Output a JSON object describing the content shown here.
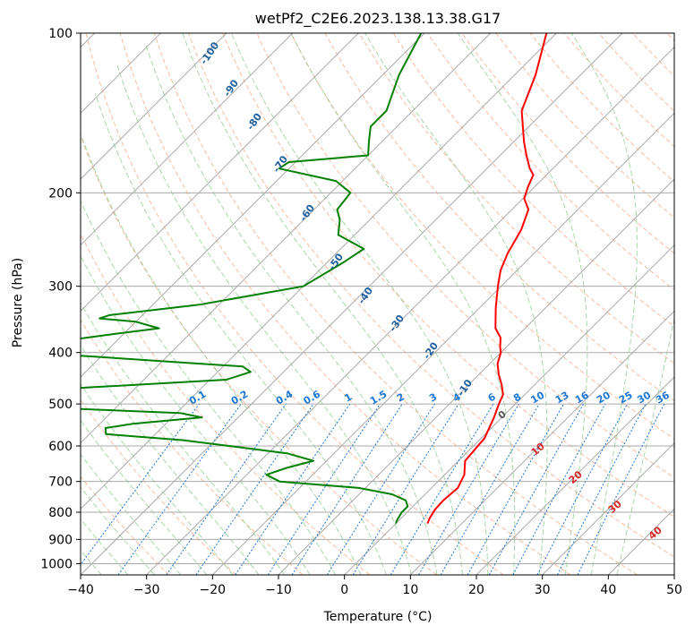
{
  "chart_data": {
    "type": "line",
    "title": "wetPf2_C2E6.2023.138.13.38.G17",
    "xlabel": "Temperature (°C)",
    "ylabel": "Pressure (hPa)",
    "xlim": [
      -40,
      50
    ],
    "ylim": [
      1050,
      100
    ],
    "y_scale": "log",
    "grid": true,
    "x_ticks": [
      "−40",
      "−30",
      "−20",
      "−10",
      "0",
      "10",
      "20",
      "30",
      "40",
      "50"
    ],
    "x_tick_values": [
      -40,
      -30,
      -20,
      -10,
      0,
      10,
      20,
      30,
      40,
      50
    ],
    "y_ticks": [
      "100",
      "200",
      "300",
      "400",
      "500",
      "600",
      "700",
      "800",
      "900",
      "1000"
    ],
    "y_tick_values": [
      100,
      200,
      300,
      400,
      500,
      600,
      700,
      800,
      900,
      1000
    ],
    "series": [
      {
        "color": "#ff0000",
        "p": [
          100,
          120,
          140,
          160,
          170,
          180,
          185,
          195,
          205,
          215,
          235,
          260,
          280,
          300,
          330,
          360,
          375,
          390,
          400,
          420,
          440,
          460,
          480,
          500,
          530,
          580,
          640,
          680,
          720,
          760,
          790,
          820,
          840
        ],
        "t": [
          -51.5,
          -46.8,
          -43.5,
          -38.5,
          -36.0,
          -33.5,
          -32.0,
          -31.0,
          -29.8,
          -27.5,
          -25.5,
          -24.0,
          -22.5,
          -20.5,
          -17.5,
          -14.5,
          -12.3,
          -11.0,
          -10.0,
          -8.8,
          -7.0,
          -5.0,
          -3.3,
          -2.5,
          -1.2,
          0.5,
          1.0,
          3.0,
          4.0,
          3.7,
          3.8,
          4.3,
          4.8
        ]
      },
      {
        "color": "#008000",
        "p": [
          100,
          120,
          140,
          150,
          160,
          170,
          175,
          180,
          190,
          200,
          215,
          225,
          240,
          255,
          270,
          300,
          325,
          340,
          345,
          350,
          360,
          370,
          380,
          405,
          425,
          435,
          450,
          470,
          510,
          520,
          530,
          545,
          555,
          570,
          585,
          600,
          620,
          640,
          660,
          680,
          700,
          720,
          740,
          760,
          780,
          800,
          830,
          840
        ],
        "t": [
          -70.5,
          -67.5,
          -64.0,
          -64.0,
          -62.0,
          -60.0,
          -71.0,
          -71.5,
          -61.0,
          -57.0,
          -56.5,
          -54.5,
          -52.5,
          -46.5,
          -47.5,
          -50.0,
          -63.0,
          -75.0,
          -76.0,
          -70.0,
          -65.5,
          -72.0,
          -78.0,
          -74.0,
          -47.0,
          -45.0,
          -47.5,
          -73.0,
          -67.0,
          -49.5,
          -45.5,
          -55.0,
          -58.5,
          -57.5,
          -45.0,
          -37.0,
          -27.0,
          -22.0,
          -25.0,
          -27.0,
          -24.0,
          -11.0,
          -5.0,
          -2.0,
          -0.8,
          -0.8,
          -0.3,
          0.0
        ]
      }
    ],
    "mixing_ratio_labels": [
      "0.1",
      "0.2",
      "0.4",
      "0.6",
      "1",
      "1.5",
      "2",
      "3",
      "4",
      "6",
      "8",
      "10",
      "13",
      "16",
      "20",
      "25",
      "30",
      "36"
    ],
    "mixing_ratio_values": [
      0.1,
      0.2,
      0.4,
      0.6,
      1,
      1.5,
      2,
      3,
      4,
      6,
      8,
      10,
      13,
      16,
      20,
      25,
      30,
      36
    ],
    "moist_adiabat_labels": [
      "-100",
      "-90",
      "-80",
      "-70",
      "-60",
      "-50",
      "-40",
      "-30",
      "-20",
      "-10"
    ],
    "moist_adiabat_values": [
      -100,
      -90,
      -80,
      -70,
      -60,
      -50,
      -40,
      -30,
      -20,
      -10
    ],
    "dry_adiabat_labels": [
      "0",
      "10",
      "20",
      "30",
      "40"
    ],
    "dry_adiabat_values": [
      0,
      10,
      20,
      30,
      40
    ],
    "colors": {
      "temperature": "#ff0000",
      "dewpoint": "#008000",
      "isotherm": "#aaaaaa",
      "isobar": "#aaaaaa",
      "dry_adiabat": "#f4a582",
      "moist_adiabat": "#8fc88f",
      "mixing_ratio": "#1f77d4",
      "moist_label": "#1f5f9e",
      "dry_label": "#d62728"
    }
  }
}
